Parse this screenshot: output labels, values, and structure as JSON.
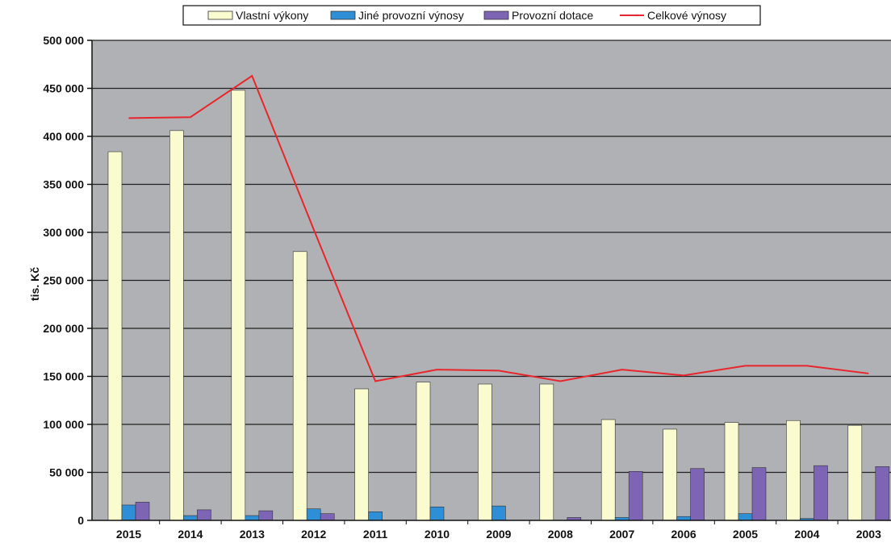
{
  "chart_data": {
    "type": "bar",
    "title": "",
    "xlabel": "",
    "ylabel": "tis. Kč",
    "ylim": [
      0,
      500000
    ],
    "yticks": [
      0,
      50000,
      100000,
      150000,
      200000,
      250000,
      300000,
      350000,
      400000,
      450000,
      500000
    ],
    "ytick_labels": [
      "0",
      "50 000",
      "100 000",
      "150 000",
      "200 000",
      "250 000",
      "300 000",
      "350 000",
      "400 000",
      "450 000",
      "500 000"
    ],
    "grid": true,
    "legend_position": "top",
    "categories": [
      "2015",
      "2014",
      "2013",
      "2012",
      "2011",
      "2010",
      "2009",
      "2008",
      "2007",
      "2006",
      "2005",
      "2004",
      "2003"
    ],
    "series": [
      {
        "name": "Vlastní výkony",
        "type": "bar",
        "color": "#fbfbd0",
        "values": [
          384000,
          406000,
          448000,
          280000,
          137000,
          144000,
          142000,
          142000,
          105000,
          95000,
          102000,
          104000,
          99000
        ]
      },
      {
        "name": "Jiné provozní výnosy",
        "type": "bar",
        "color": "#2f8fd6",
        "values": [
          16000,
          5000,
          5000,
          12000,
          9000,
          14000,
          15000,
          0,
          3000,
          4000,
          7000,
          2000,
          0
        ]
      },
      {
        "name": "Provozní dotace",
        "type": "bar",
        "color": "#7e64b4",
        "values": [
          19000,
          11000,
          10000,
          7000,
          0,
          0,
          0,
          3000,
          51000,
          54000,
          55000,
          57000,
          56000
        ]
      },
      {
        "name": "Celkové výnosy",
        "type": "line",
        "color": "#e8262b",
        "values": [
          419000,
          420000,
          463000,
          303000,
          145000,
          157000,
          156000,
          145000,
          157000,
          151000,
          161000,
          161000,
          153000
        ]
      }
    ],
    "colors": {
      "plot_background": "#b0b1b4",
      "gridline": "#222222",
      "axis": "#111111"
    }
  }
}
